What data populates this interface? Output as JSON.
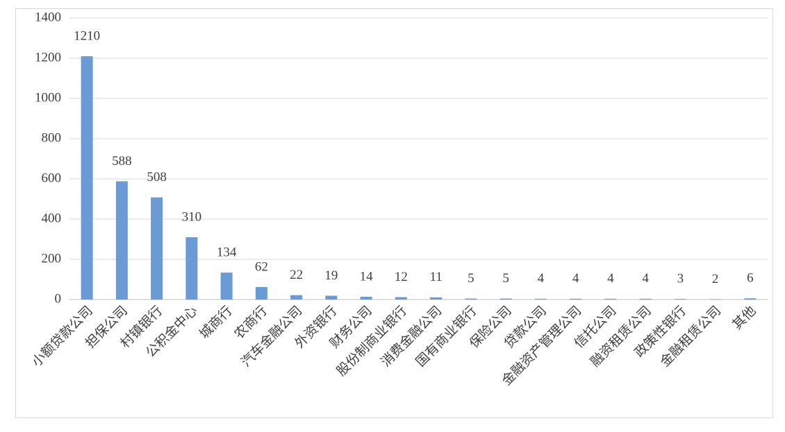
{
  "chart_data": {
    "type": "bar",
    "categories": [
      "小额贷款公司",
      "担保公司",
      "村镇银行",
      "公积金中心",
      "城商行",
      "农商行",
      "汽车金融公司",
      "外资银行",
      "财务公司",
      "股份制商业银行",
      "消费金融公司",
      "国有商业银行",
      "保险公司",
      "贷款公司",
      "金融资产管理公司",
      "信托公司",
      "融资租赁公司",
      "政策性银行",
      "金融租赁公司",
      "其他"
    ],
    "values": [
      1210,
      588,
      508,
      310,
      134,
      62,
      22,
      19,
      14,
      12,
      11,
      5,
      5,
      4,
      4,
      4,
      4,
      3,
      2,
      6
    ],
    "color": "#6a9bd6",
    "ylim": [
      0,
      1400
    ],
    "yticks": [
      0,
      200,
      400,
      600,
      800,
      1000,
      1200,
      1400
    ],
    "grid": true
  }
}
